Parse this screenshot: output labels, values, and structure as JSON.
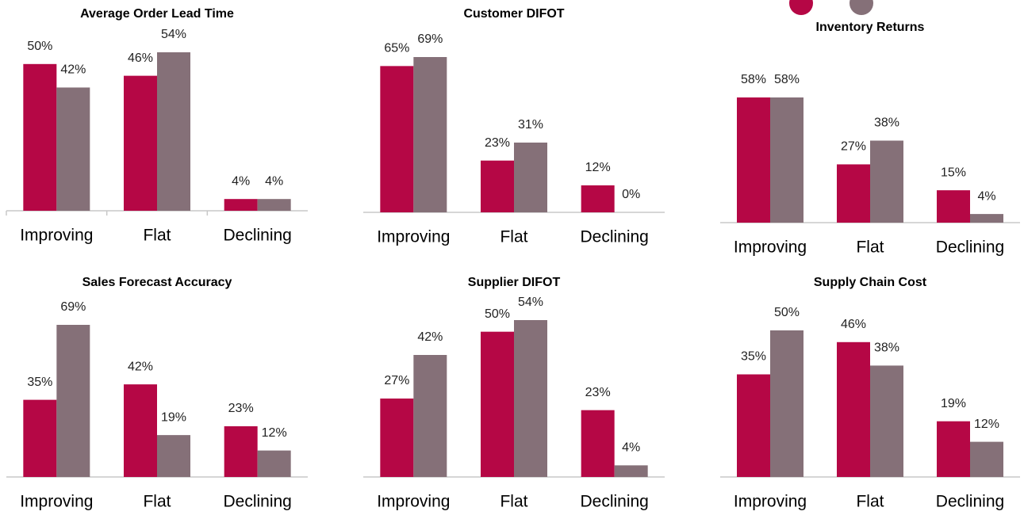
{
  "chart_data": [
    {
      "type": "bar",
      "title": "Average Order Lead Time",
      "categories": [
        "Improving",
        "Flat",
        "Declining"
      ],
      "series": [
        {
          "color": "#b50745",
          "values": [
            50,
            46,
            4
          ],
          "value_labels": [
            "50%",
            "46%",
            "4%"
          ]
        },
        {
          "color": "#857078",
          "values": [
            42,
            54,
            4
          ],
          "value_labels": [
            "42%",
            "54%",
            "4%"
          ]
        }
      ]
    },
    {
      "type": "bar",
      "title": "Customer DIFOT",
      "categories": [
        "Improving",
        "Flat",
        "Declining"
      ],
      "series": [
        {
          "color": "#b50745",
          "values": [
            65,
            23,
            12
          ],
          "value_labels": [
            "65%",
            "23%",
            "12%"
          ]
        },
        {
          "color": "#857078",
          "values": [
            69,
            31,
            0
          ],
          "value_labels": [
            "69%",
            "31%",
            "0%"
          ]
        }
      ]
    },
    {
      "type": "bar",
      "title": "Inventory Returns",
      "categories": [
        "Improving",
        "Flat",
        "Declining"
      ],
      "series": [
        {
          "color": "#b50745",
          "values": [
            58,
            27,
            15
          ],
          "value_labels": [
            "58%",
            "27%",
            "15%"
          ]
        },
        {
          "color": "#857078",
          "values": [
            58,
            38,
            4
          ],
          "value_labels": [
            "58%",
            "38%",
            "4%"
          ]
        }
      ]
    },
    {
      "type": "bar",
      "title": "Sales Forecast Accuracy",
      "categories": [
        "Improving",
        "Flat",
        "Declining"
      ],
      "series": [
        {
          "color": "#b50745",
          "values": [
            35,
            42,
            23
          ],
          "value_labels": [
            "35%",
            "42%",
            "23%"
          ]
        },
        {
          "color": "#857078",
          "values": [
            69,
            19,
            12
          ],
          "value_labels": [
            "69%",
            "19%",
            "12%"
          ]
        }
      ]
    },
    {
      "type": "bar",
      "title": "Supplier DIFOT",
      "categories": [
        "Improving",
        "Flat",
        "Declining"
      ],
      "series": [
        {
          "color": "#b50745",
          "values": [
            27,
            50,
            23
          ],
          "value_labels": [
            "27%",
            "50%",
            "23%"
          ]
        },
        {
          "color": "#857078",
          "values": [
            42,
            54,
            4
          ],
          "value_labels": [
            "42%",
            "54%",
            "4%"
          ]
        }
      ]
    },
    {
      "type": "bar",
      "title": "Supply Chain Cost",
      "categories": [
        "Improving",
        "Flat",
        "Declining"
      ],
      "series": [
        {
          "color": "#b50745",
          "values": [
            35,
            46,
            19
          ],
          "value_labels": [
            "35%",
            "46%",
            "19%"
          ]
        },
        {
          "color": "#857078",
          "values": [
            50,
            38,
            12
          ],
          "value_labels": [
            "50%",
            "38%",
            "12%"
          ]
        }
      ]
    }
  ]
}
